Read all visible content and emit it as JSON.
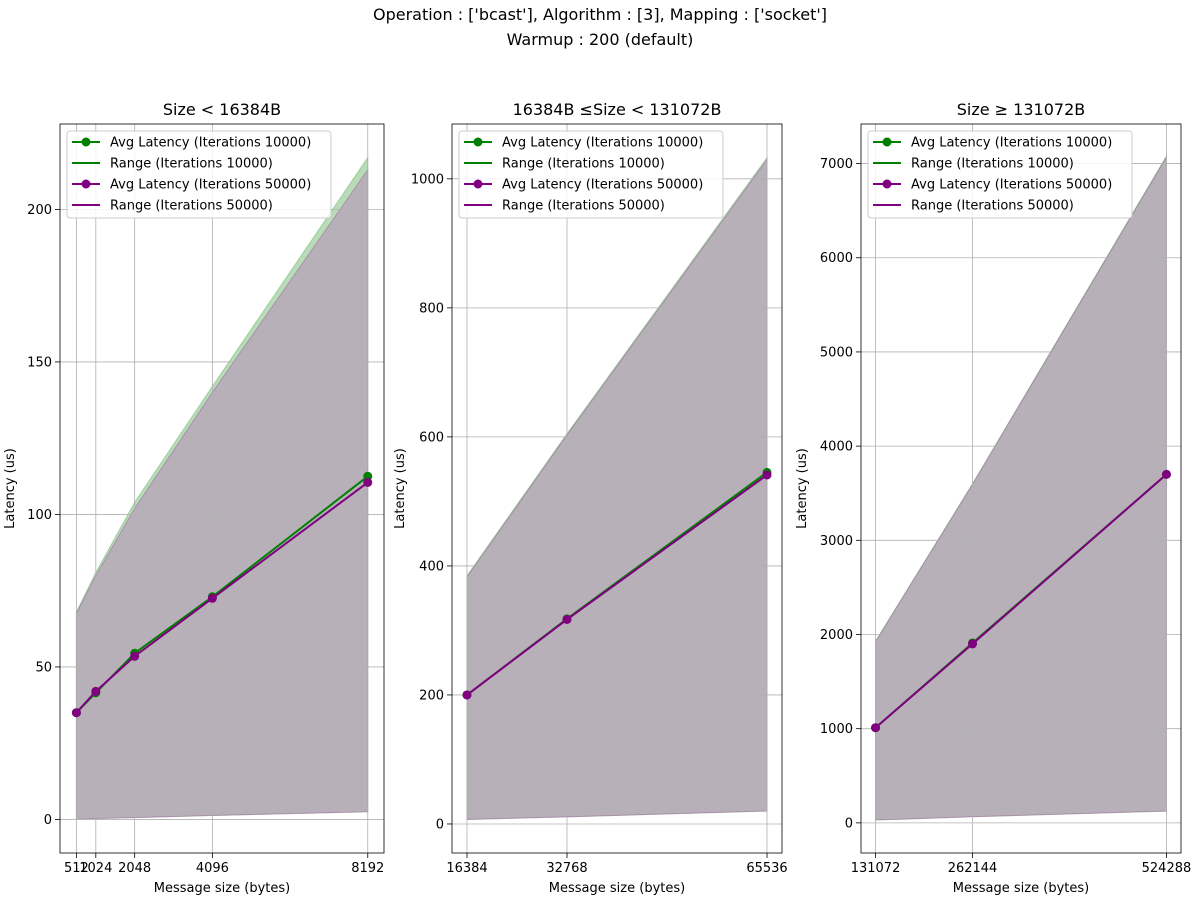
{
  "figure": {
    "suptitle_line1": "Operation :  ['bcast'], Algorithm :  [3], Mapping :  ['socket']",
    "suptitle_line2": "Warmup :  200 (default)"
  },
  "colors": {
    "series_10000": "#008000",
    "series_50000": "#800080",
    "range_fill": "#b7b0b9",
    "grid": "#b0b0b0"
  },
  "chart_data": [
    {
      "type": "line",
      "title": "Size <  16384B",
      "xlabel": "Message size (bytes)",
      "ylabel": "Latency (us)",
      "x": [
        512,
        1024,
        2048,
        4096,
        8192
      ],
      "x_ticks": [
        512,
        1024,
        2048,
        4096,
        8192
      ],
      "x_tick_labels": [
        "512",
        "1024",
        "2048",
        "4096",
        "8192"
      ],
      "xlim": [
        80,
        8620
      ],
      "y_ticks": [
        0,
        50,
        100,
        150,
        200
      ],
      "ylim": [
        -11,
        228
      ],
      "grid": true,
      "legend_loc": "upper left",
      "series": [
        {
          "name": "Avg Latency (Iterations 10000)",
          "kind": "avg",
          "color": "#008000",
          "values": [
            35,
            41.5,
            54.5,
            73,
            112.5
          ]
        },
        {
          "name": "Range (Iterations 10000)",
          "kind": "range",
          "color": "#008000",
          "min": [
            0,
            0.3,
            0.6,
            1.3,
            2.5
          ],
          "max": [
            68,
            81,
            104,
            142,
            217
          ]
        },
        {
          "name": "Avg Latency (Iterations 50000)",
          "kind": "avg",
          "color": "#800080",
          "values": [
            35,
            42,
            53.5,
            72.5,
            110.5
          ]
        },
        {
          "name": "Range (Iterations 50000)",
          "kind": "range",
          "color": "#800080",
          "min": [
            0,
            0.3,
            0.6,
            1.3,
            2.5
          ],
          "max": [
            67.5,
            80,
            102,
            140,
            213
          ]
        }
      ]
    },
    {
      "type": "line",
      "title": "16384B  ≤Size <  131072B",
      "xlabel": "Message size (bytes)",
      "ylabel": "Latency (us)",
      "x": [
        16384,
        32768,
        65536
      ],
      "x_ticks": [
        16384,
        32768,
        65536
      ],
      "x_tick_labels": [
        "16384",
        "32768",
        "65536"
      ],
      "xlim": [
        13926,
        67994
      ],
      "y_ticks": [
        0,
        200,
        400,
        600,
        800,
        1000
      ],
      "ylim": [
        -45,
        1085
      ],
      "grid": true,
      "legend_loc": "upper left",
      "series": [
        {
          "name": "Avg Latency (Iterations 10000)",
          "kind": "avg",
          "color": "#008000",
          "values": [
            200,
            318,
            545
          ]
        },
        {
          "name": "Range (Iterations 10000)",
          "kind": "range",
          "color": "#008000",
          "min": [
            7,
            11,
            20
          ],
          "max": [
            385,
            605,
            1033
          ]
        },
        {
          "name": "Avg Latency (Iterations 50000)",
          "kind": "avg",
          "color": "#800080",
          "values": [
            200,
            317,
            541
          ]
        },
        {
          "name": "Range (Iterations 50000)",
          "kind": "range",
          "color": "#800080",
          "min": [
            7,
            11,
            20
          ],
          "max": [
            383,
            603,
            1030
          ]
        }
      ]
    },
    {
      "type": "line",
      "title": "Size ≥  131072B",
      "xlabel": "Message size (bytes)",
      "ylabel": "Latency (us)",
      "x": [
        131072,
        262144,
        524288
      ],
      "x_ticks": [
        131072,
        262144,
        524288
      ],
      "x_tick_labels": [
        "131072",
        "262144",
        "524288"
      ],
      "xlim": [
        111411,
        543949
      ],
      "y_ticks": [
        0,
        1000,
        2000,
        3000,
        4000,
        5000,
        6000,
        7000
      ],
      "ylim": [
        -320,
        7420
      ],
      "grid": true,
      "legend_loc": "upper left",
      "series": [
        {
          "name": "Avg Latency (Iterations 10000)",
          "kind": "avg",
          "color": "#008000",
          "values": [
            1010,
            1910,
            3700
          ]
        },
        {
          "name": "Range (Iterations 10000)",
          "kind": "range",
          "color": "#008000",
          "min": [
            30,
            65,
            125
          ],
          "max": [
            1930,
            3600,
            7080
          ]
        },
        {
          "name": "Avg Latency (Iterations 50000)",
          "kind": "avg",
          "color": "#800080",
          "values": [
            1010,
            1900,
            3700
          ]
        },
        {
          "name": "Range (Iterations 50000)",
          "kind": "range",
          "color": "#800080",
          "min": [
            30,
            65,
            125
          ],
          "max": [
            1925,
            3595,
            7070
          ]
        }
      ]
    }
  ]
}
